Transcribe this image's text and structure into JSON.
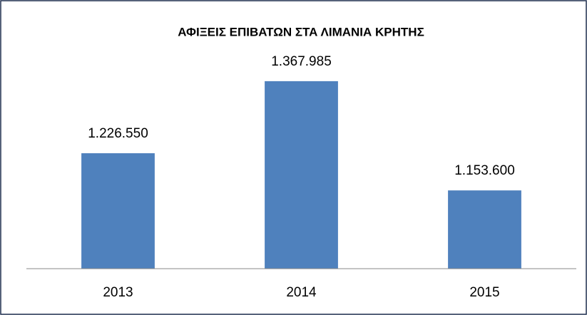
{
  "chart_data": {
    "type": "bar",
    "title": "ΑΦΙΞΕΙΣ ΕΠΙΒΑΤΩΝ ΣΤΑ ΛΙΜΑΝΙΑ ΚΡΗΤΗΣ",
    "categories": [
      "2013",
      "2014",
      "2015"
    ],
    "values": [
      1226550,
      1367985,
      1153600
    ],
    "value_labels": [
      "1.226.550",
      "1.367.985",
      "1.153.600"
    ],
    "color": "#4f81bd",
    "ylim": [
      1000000,
      1400000
    ]
  }
}
